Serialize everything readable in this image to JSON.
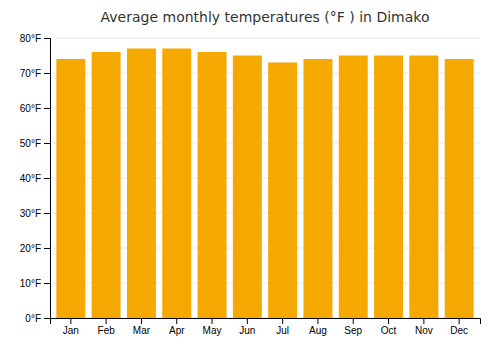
{
  "chart_data": {
    "type": "bar",
    "title": "Average monthly temperatures (°F ) in Dimako",
    "categories": [
      "Jan",
      "Feb",
      "Mar",
      "Apr",
      "May",
      "Jun",
      "Jul",
      "Aug",
      "Sep",
      "Oct",
      "Nov",
      "Dec"
    ],
    "values": [
      74,
      76,
      77,
      77,
      76,
      75,
      73,
      74,
      75,
      75,
      75,
      74
    ],
    "color": "#F5A800",
    "ylim": [
      0,
      80
    ],
    "yticks": [
      {
        "value": 0,
        "label": "0°F"
      },
      {
        "value": 10,
        "label": "10°F"
      },
      {
        "value": 20,
        "label": "20°F"
      },
      {
        "value": 30,
        "label": "30°F"
      },
      {
        "value": 40,
        "label": "40°F"
      },
      {
        "value": 50,
        "label": "50°F"
      },
      {
        "value": 60,
        "label": "60°F"
      },
      {
        "value": 70,
        "label": "70°F"
      },
      {
        "value": 80,
        "label": "80°F"
      }
    ],
    "grid": true
  }
}
